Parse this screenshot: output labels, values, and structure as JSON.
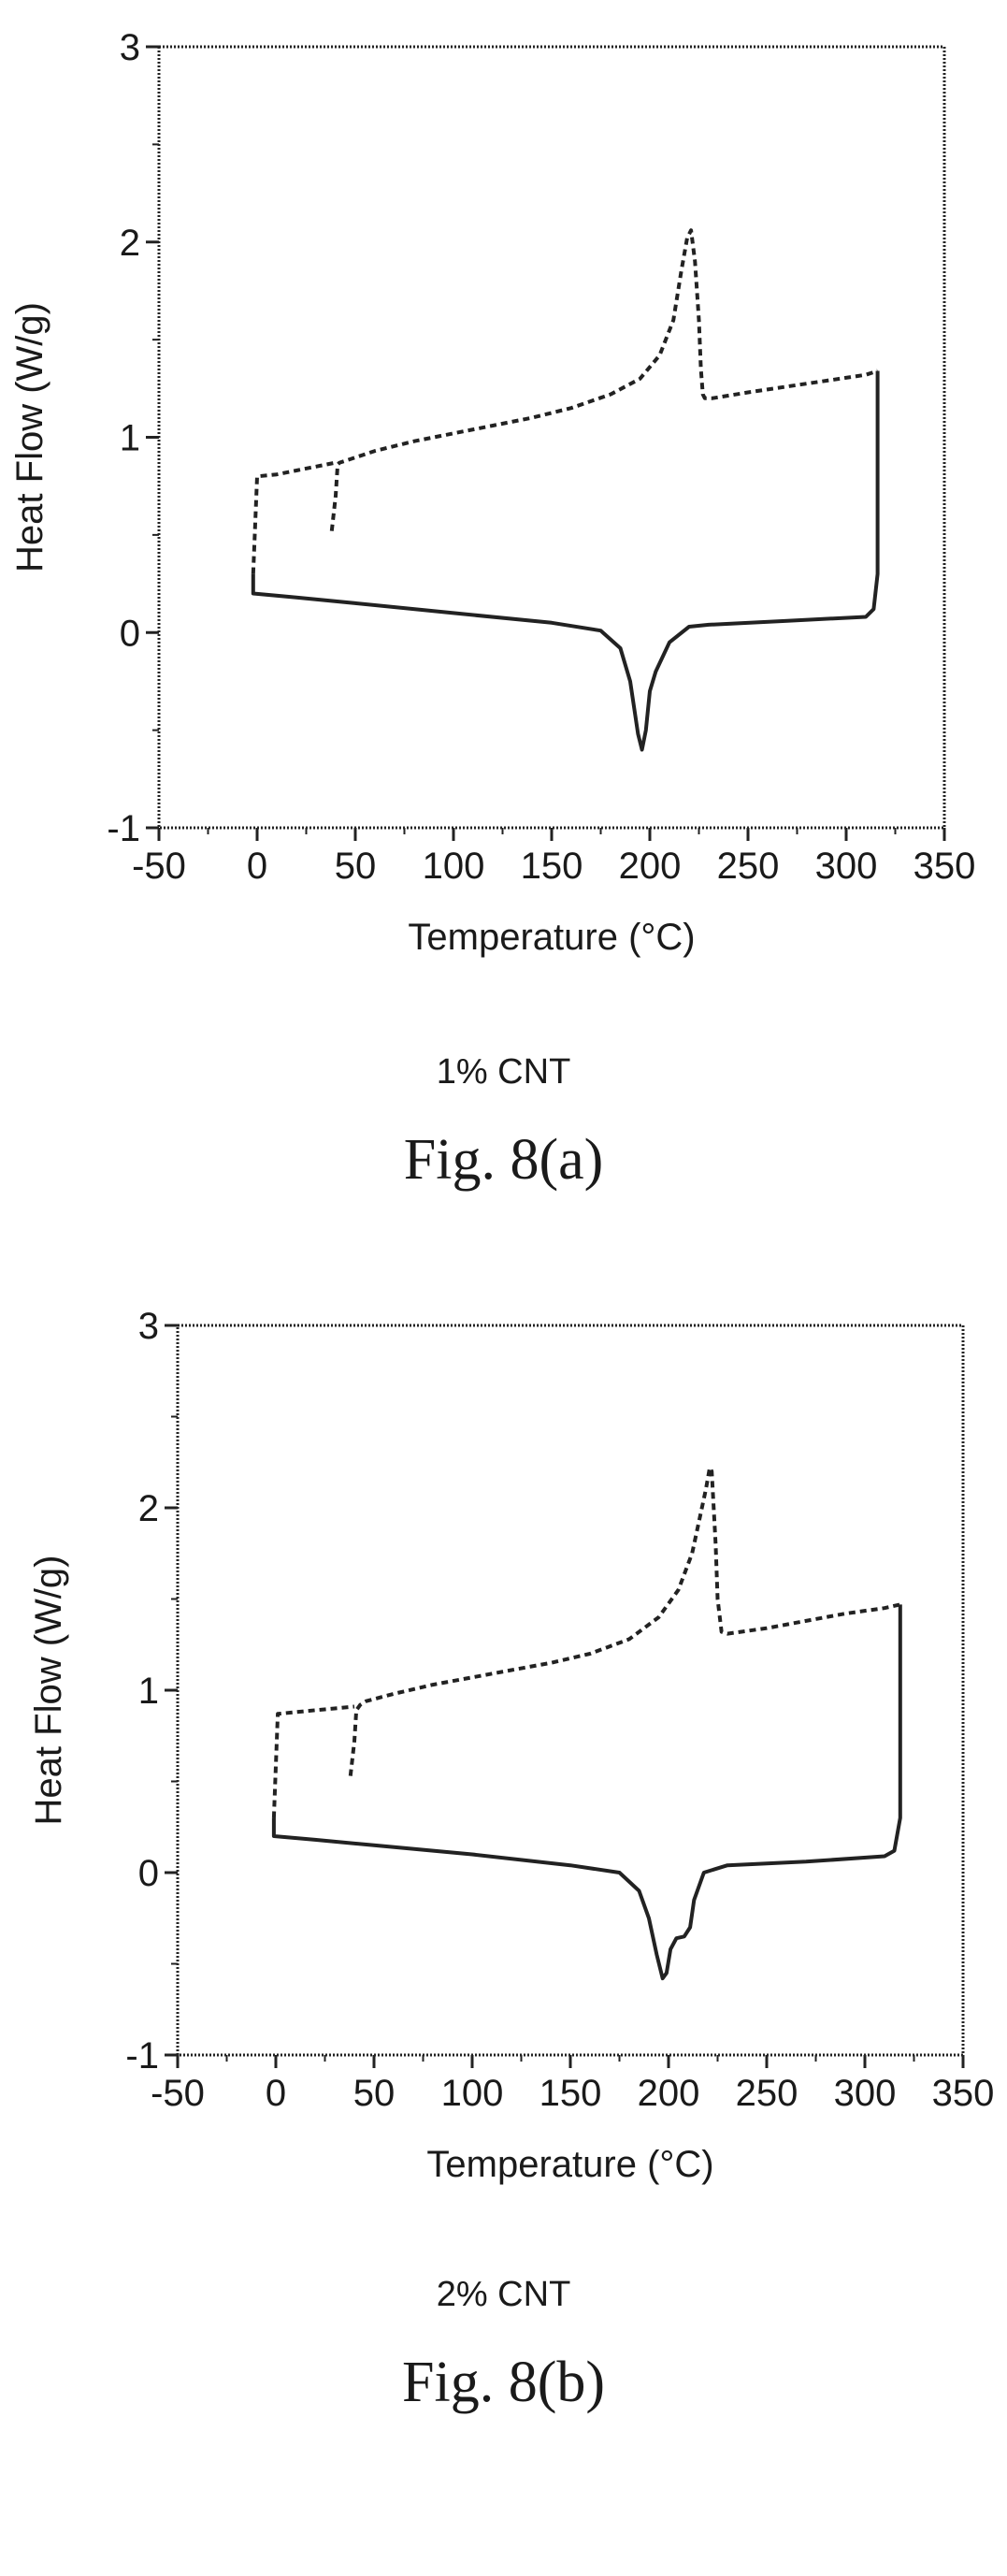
{
  "figures": [
    {
      "caption": "1% CNT",
      "label": "Fig. 8(a)"
    },
    {
      "caption": "2% CNT",
      "label": "Fig. 8(b)"
    }
  ],
  "chart_data": [
    {
      "type": "line",
      "title": "",
      "xlabel": "Temperature (°C)",
      "ylabel": "Heat Flow (W/g)",
      "xlim": [
        -50,
        350
      ],
      "ylim": [
        -1,
        3
      ],
      "x_ticks": [
        "-50",
        "0",
        "50",
        "100",
        "150",
        "200",
        "250",
        "300",
        "350"
      ],
      "y_ticks": [
        "-1",
        "0",
        "1",
        "2",
        "3"
      ],
      "grid": false,
      "series": [
        {
          "style": "dashed",
          "x": [
            38,
            40,
            41,
            42,
            45,
            60,
            80,
            100,
            120,
            140,
            160,
            180,
            195,
            205,
            212,
            216,
            219,
            221,
            223,
            225,
            226,
            227,
            228,
            232,
            250,
            270,
            290,
            310,
            316
          ],
          "y": [
            0.52,
            0.7,
            0.86,
            0.87,
            0.88,
            0.93,
            0.98,
            1.02,
            1.06,
            1.1,
            1.15,
            1.22,
            1.3,
            1.42,
            1.6,
            1.85,
            2.02,
            2.06,
            1.9,
            1.6,
            1.35,
            1.22,
            1.2,
            1.2,
            1.23,
            1.26,
            1.29,
            1.32,
            1.34
          ]
        },
        {
          "style": "dashed",
          "x": [
            -2,
            0,
            10,
            20,
            30,
            40
          ],
          "y": [
            0.3,
            0.8,
            0.81,
            0.83,
            0.85,
            0.87
          ]
        },
        {
          "style": "solid",
          "x": [
            -2,
            -2,
            20,
            50,
            100,
            150,
            175,
            185,
            190,
            194,
            196,
            198,
            200,
            203,
            210,
            220,
            230,
            270,
            310,
            314,
            316,
            316
          ],
          "y": [
            0.3,
            0.2,
            0.18,
            0.15,
            0.1,
            0.05,
            0.01,
            -0.08,
            -0.25,
            -0.52,
            -0.6,
            -0.5,
            -0.3,
            -0.2,
            -0.05,
            0.03,
            0.04,
            0.06,
            0.08,
            0.12,
            0.3,
            1.34
          ]
        }
      ]
    },
    {
      "type": "line",
      "title": "",
      "xlabel": "Temperature (°C)",
      "ylabel": "Heat Flow (W/g)",
      "xlim": [
        -50,
        350
      ],
      "ylim": [
        -1,
        3
      ],
      "x_ticks": [
        "-50",
        "0",
        "50",
        "100",
        "150",
        "200",
        "250",
        "300",
        "350"
      ],
      "y_ticks": [
        "-1",
        "0",
        "1",
        "2",
        "3"
      ],
      "grid": false,
      "series": [
        {
          "style": "dashed",
          "x": [
            38,
            40,
            41,
            43,
            46,
            60,
            80,
            100,
            120,
            140,
            160,
            180,
            195,
            205,
            212,
            216,
            219,
            221,
            222,
            224,
            225,
            227,
            230,
            250,
            270,
            290,
            310,
            318
          ],
          "y": [
            0.53,
            0.72,
            0.89,
            0.92,
            0.94,
            0.98,
            1.03,
            1.07,
            1.11,
            1.15,
            1.2,
            1.28,
            1.4,
            1.55,
            1.75,
            1.95,
            2.1,
            2.22,
            2.2,
            1.8,
            1.5,
            1.32,
            1.31,
            1.34,
            1.38,
            1.42,
            1.45,
            1.47
          ]
        },
        {
          "style": "dashed",
          "x": [
            -1,
            1,
            10,
            20,
            30,
            40
          ],
          "y": [
            0.3,
            0.87,
            0.88,
            0.89,
            0.9,
            0.91
          ]
        },
        {
          "style": "solid",
          "x": [
            -1,
            -1,
            20,
            50,
            100,
            150,
            175,
            185,
            190,
            194,
            197,
            199,
            201,
            204,
            208,
            211,
            213,
            218,
            230,
            270,
            310,
            315,
            318,
            318
          ],
          "y": [
            0.3,
            0.2,
            0.18,
            0.15,
            0.1,
            0.04,
            0.0,
            -0.1,
            -0.25,
            -0.45,
            -0.58,
            -0.55,
            -0.42,
            -0.36,
            -0.35,
            -0.3,
            -0.15,
            0.0,
            0.04,
            0.06,
            0.09,
            0.12,
            0.3,
            1.47
          ]
        }
      ]
    }
  ]
}
